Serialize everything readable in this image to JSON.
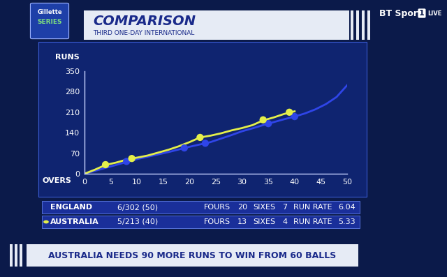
{
  "branding": {
    "logo": [
      "Gillette",
      "SERIES"
    ],
    "channel": [
      "BT Sport",
      "1",
      "LIVE"
    ]
  },
  "chart_data": {
    "type": "line",
    "title": "COMPARISON",
    "subtitle": "THIRD ONE-DAY INTERNATIONAL",
    "x_label": "OVERS",
    "y_label": "RUNS",
    "xlim": [
      0,
      50
    ],
    "ylim": [
      0,
      350
    ],
    "xticks": [
      0,
      5,
      10,
      15,
      20,
      25,
      30,
      35,
      40,
      45,
      50
    ],
    "yticks": [
      0,
      70,
      140,
      210,
      280,
      350
    ],
    "grid": false,
    "series": [
      {
        "name": "ENGLAND",
        "color": "#2f45e8",
        "x": [
          0,
          2,
          4,
          6,
          8,
          10,
          12,
          14,
          16,
          18,
          20,
          22,
          24,
          26,
          28,
          30,
          32,
          34,
          36,
          38,
          40,
          42,
          44,
          46,
          48,
          50
        ],
        "values": [
          0,
          10,
          20,
          30,
          40,
          50,
          58,
          66,
          74,
          83,
          92,
          100,
          108,
          120,
          132,
          145,
          155,
          166,
          176,
          186,
          195,
          206,
          220,
          238,
          262,
          302
        ],
        "wickets": {
          "x": [
            8,
            19,
            23,
            35,
            40
          ],
          "values": [
            42,
            88,
            104,
            171,
            195
          ]
        },
        "score": "6/302",
        "overs": "(50)",
        "fours": 20,
        "sixes": 7,
        "run_rate": 6.04
      },
      {
        "name": "AUSTRALIA",
        "color": "#e4ef4a",
        "x": [
          0,
          2,
          4,
          6,
          8,
          10,
          12,
          14,
          16,
          18,
          20,
          22,
          24,
          26,
          28,
          30,
          32,
          34,
          36,
          38,
          40
        ],
        "values": [
          0,
          14,
          30,
          38,
          48,
          55,
          62,
          72,
          82,
          94,
          108,
          124,
          130,
          138,
          148,
          156,
          166,
          182,
          192,
          204,
          213
        ],
        "wickets": {
          "x": [
            4,
            9,
            22,
            34,
            39
          ],
          "values": [
            31,
            52,
            124,
            184,
            210
          ]
        },
        "score": "5/213",
        "overs": "(40)",
        "fours": 13,
        "sixes": 4,
        "run_rate": 5.33
      }
    ]
  },
  "scoreboard": {
    "labels": [
      "FOURS",
      "SIXES",
      "RUN RATE"
    ]
  },
  "banner": "AUSTRALIA NEEDS 90 MORE RUNS TO WIN FROM 60 BALLS"
}
